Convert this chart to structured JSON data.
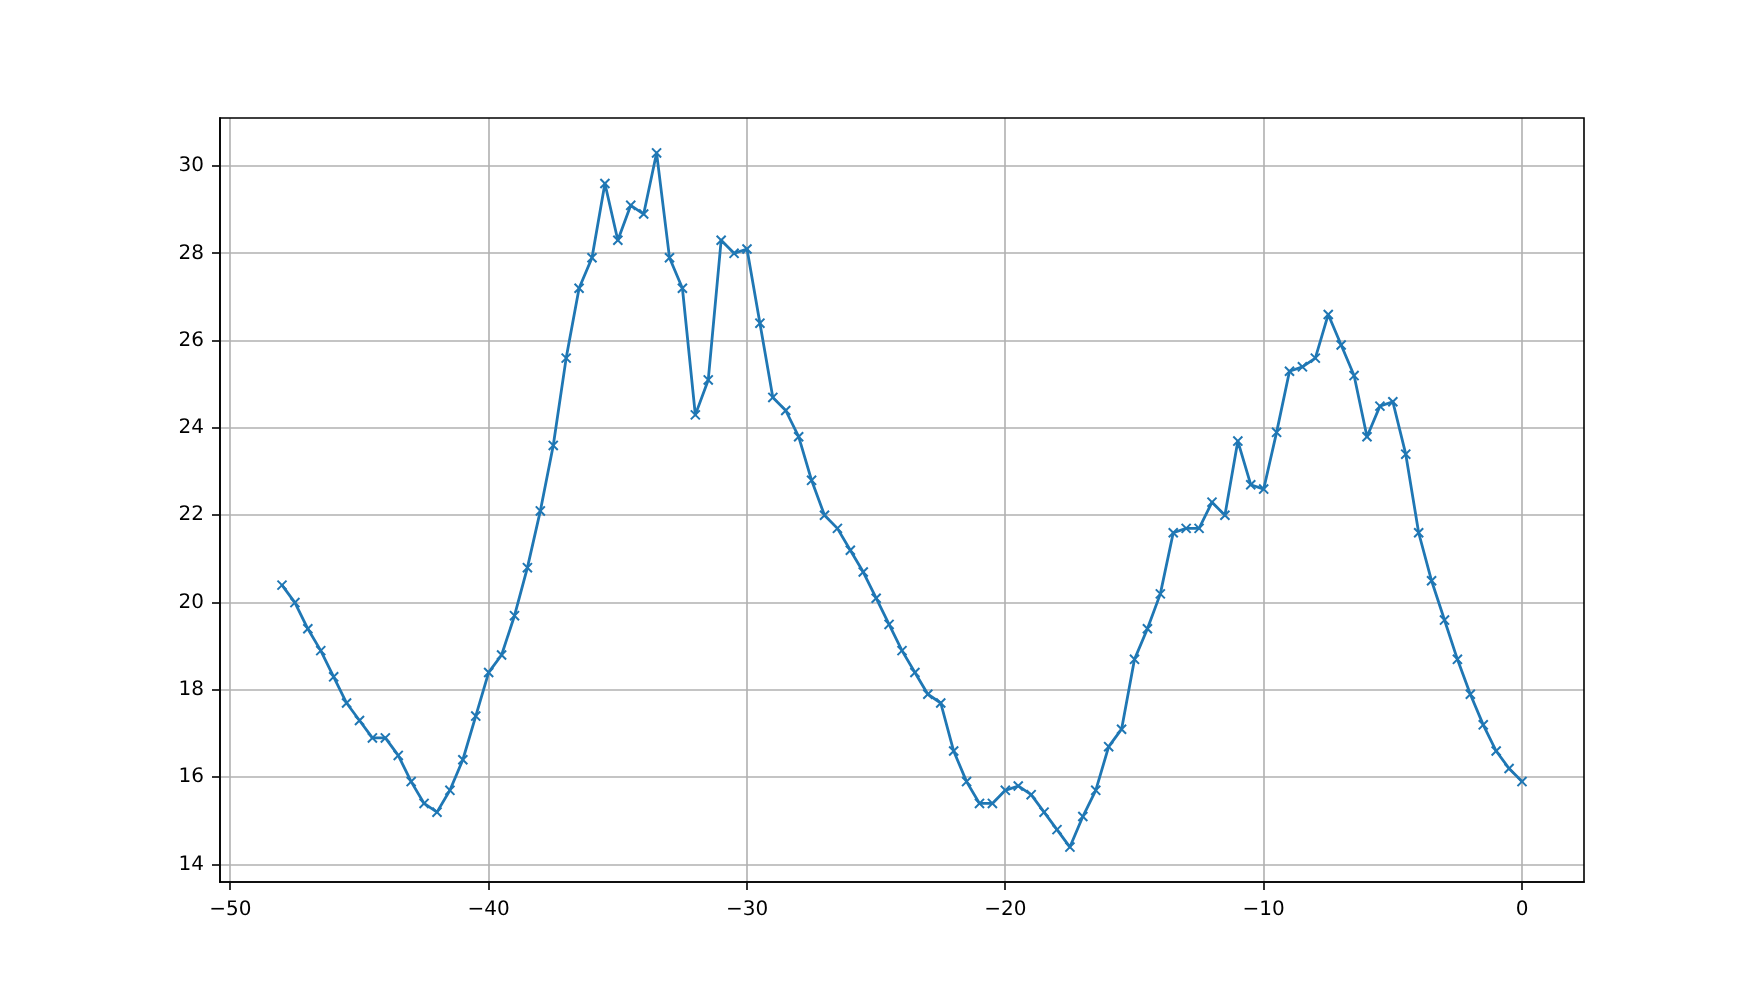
{
  "chart_data": {
    "type": "line",
    "color": "#1f77b4",
    "marker": "cross",
    "line_style": "solid",
    "grid": true,
    "legend": false,
    "x": [
      -48,
      -47.5,
      -47,
      -46.5,
      -46,
      -45.5,
      -45,
      -44.5,
      -44,
      -43.5,
      -43,
      -42.5,
      -42,
      -41.5,
      -41,
      -40.5,
      -40,
      -39.5,
      -39,
      -38.5,
      -38,
      -37.5,
      -37,
      -36.5,
      -36,
      -35.5,
      -35,
      -34.5,
      -34,
      -33.5,
      -33,
      -32.5,
      -32,
      -31.5,
      -31,
      -30.5,
      -30,
      -29.5,
      -29,
      -28.5,
      -28,
      -27.5,
      -27,
      -26.5,
      -26,
      -25.5,
      -25,
      -24.5,
      -24,
      -23.5,
      -23,
      -22.5,
      -22,
      -21.5,
      -21,
      -20.5,
      -20,
      -19.5,
      -19,
      -18.5,
      -18,
      -17.5,
      -17,
      -16.5,
      -16,
      -15.5,
      -15,
      -14.5,
      -14,
      -13.5,
      -13,
      -12.5,
      -12,
      -11.5,
      -11,
      -10.5,
      -10,
      -9.5,
      -9,
      -8.5,
      -8,
      -7.5,
      -7,
      -6.5,
      -6,
      -5.5,
      -5,
      -4.5,
      -4,
      -3.5,
      -3,
      -2.5,
      -2,
      -1.5,
      -1,
      -0.5,
      0
    ],
    "values": [
      20.4,
      20.0,
      19.4,
      18.9,
      18.3,
      17.7,
      17.3,
      16.9,
      16.9,
      16.5,
      15.9,
      15.4,
      15.2,
      15.7,
      16.4,
      17.4,
      18.4,
      18.8,
      19.7,
      20.8,
      22.1,
      23.6,
      25.6,
      27.2,
      27.9,
      29.6,
      28.3,
      29.1,
      28.9,
      30.3,
      27.9,
      27.2,
      24.3,
      25.1,
      28.3,
      28.0,
      28.1,
      26.4,
      24.7,
      24.4,
      23.8,
      22.8,
      22.0,
      21.7,
      21.2,
      20.7,
      20.1,
      19.5,
      18.9,
      18.4,
      17.9,
      17.7,
      16.6,
      15.9,
      15.4,
      15.4,
      15.7,
      15.8,
      15.6,
      15.2,
      14.8,
      14.4,
      15.1,
      15.7,
      16.7,
      17.1,
      18.7,
      19.4,
      20.2,
      21.6,
      21.7,
      21.7,
      22.3,
      22.0,
      23.7,
      22.7,
      22.6,
      23.9,
      25.3,
      25.4,
      25.6,
      26.6,
      25.9,
      25.2,
      23.8,
      24.5,
      24.6,
      23.4,
      21.6,
      20.5,
      19.6,
      18.7,
      17.9,
      17.2,
      16.6,
      16.2,
      15.9
    ],
    "xlim": [
      -50.4,
      2.4
    ],
    "xticks": [
      {
        "value": -50,
        "label": "−50"
      },
      {
        "value": -40,
        "label": "−40"
      },
      {
        "value": -30,
        "label": "−30"
      },
      {
        "value": -20,
        "label": "−20"
      },
      {
        "value": -10,
        "label": "−10"
      },
      0
    ],
    "ylim": [
      13.6,
      31.1
    ],
    "yticks": [
      14,
      16,
      18,
      20,
      22,
      24,
      26,
      28,
      30
    ]
  }
}
